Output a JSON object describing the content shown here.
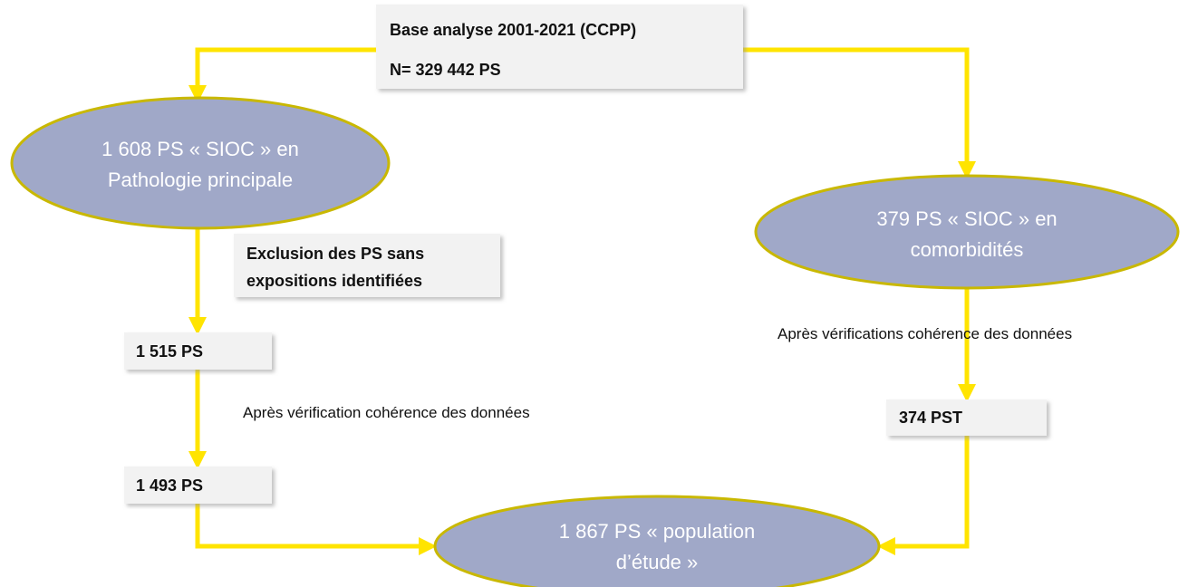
{
  "nodes": [
    {
      "lines": [
        "Base analyse 2001-2021 (CCPP)",
        "N= 329 442 PS"
      ]
    },
    {
      "lines": [
        "1 608 PS « SIOC » en",
        "Pathologie principale"
      ]
    },
    {
      "lines": [
        "Exclusion des PS sans",
        "expositions identifiées"
      ]
    },
    {
      "lines": [
        "1 515 PS"
      ]
    },
    {
      "lines": [
        "1 493 PS"
      ]
    },
    {
      "lines": [
        "379 PS « SIOC » en",
        "comorbidités"
      ]
    },
    {
      "lines": [
        "374 PST"
      ]
    },
    {
      "lines": [
        "1 867  PS « population",
        "d’étude »"
      ]
    }
  ],
  "labels": [
    "Après vérification cohérence des données",
    "Après vérifications cohérence des données"
  ]
}
